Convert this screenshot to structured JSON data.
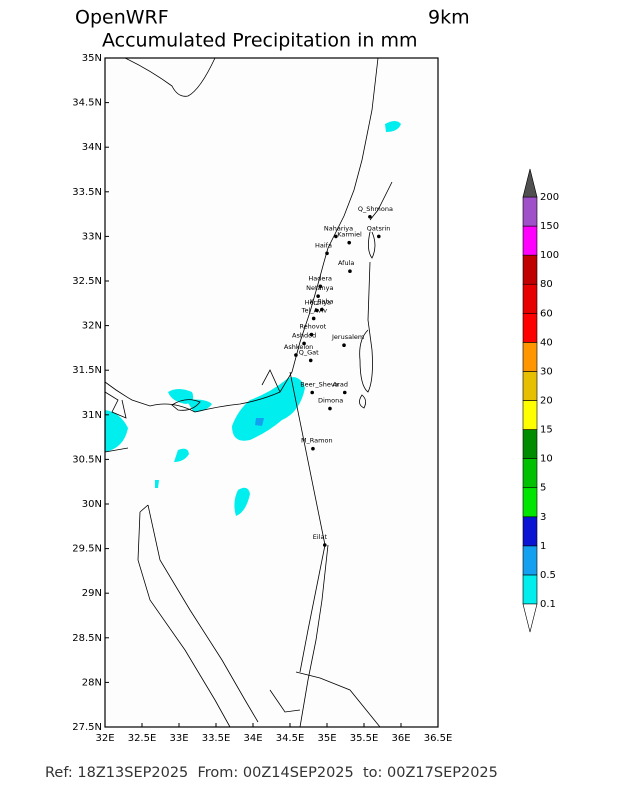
{
  "map": {
    "title": "OpenWRF",
    "resolution": "9km",
    "subtitle": "Accumulated Precipitation in mm",
    "footer": "Ref: 18Z13SEP2025  From: 00Z14SEP2025  to: 00Z17SEP2025",
    "xlim": [
      32,
      36.5
    ],
    "ylim": [
      27.5,
      35
    ],
    "xticks": [
      {
        "value": 32,
        "label": "32E"
      },
      {
        "value": 32.5,
        "label": "32.5E"
      },
      {
        "value": 33,
        "label": "33E"
      },
      {
        "value": 33.5,
        "label": "33.5E"
      },
      {
        "value": 34,
        "label": "34E"
      },
      {
        "value": 34.5,
        "label": "34.5E"
      },
      {
        "value": 35,
        "label": "35E"
      },
      {
        "value": 35.5,
        "label": "35.5E"
      },
      {
        "value": 36,
        "label": "36E"
      },
      {
        "value": 36.5,
        "label": "36.5E"
      }
    ],
    "yticks": [
      {
        "value": 27.5,
        "label": "27.5N"
      },
      {
        "value": 28,
        "label": "28N"
      },
      {
        "value": 28.5,
        "label": "28.5N"
      },
      {
        "value": 29,
        "label": "29N"
      },
      {
        "value": 29.5,
        "label": "29.5N"
      },
      {
        "value": 30,
        "label": "30N"
      },
      {
        "value": 30.5,
        "label": "30.5N"
      },
      {
        "value": 31,
        "label": "31N"
      },
      {
        "value": 31.5,
        "label": "31.5N"
      },
      {
        "value": 32,
        "label": "32N"
      },
      {
        "value": 32.5,
        "label": "32.5N"
      },
      {
        "value": 33,
        "label": "33N"
      },
      {
        "value": 33.5,
        "label": "33.5N"
      },
      {
        "value": 34,
        "label": "34N"
      },
      {
        "value": 34.5,
        "label": "34.5N"
      },
      {
        "value": 35,
        "label": "35N"
      }
    ],
    "cities": [
      {
        "name": "Q_Shmona",
        "lon": 35.58,
        "lat": 33.22
      },
      {
        "name": "Qatsrin",
        "lon": 35.7,
        "lat": 33.0
      },
      {
        "name": "Nahariya",
        "lon": 35.12,
        "lat": 33.0
      },
      {
        "name": "Karmiel",
        "lon": 35.3,
        "lat": 32.93
      },
      {
        "name": "Haifa",
        "lon": 35.0,
        "lat": 32.81
      },
      {
        "name": "Afula",
        "lon": 35.31,
        "lat": 32.61
      },
      {
        "name": "Hadera",
        "lon": 34.91,
        "lat": 32.44
      },
      {
        "name": "Netanya",
        "lon": 34.88,
        "lat": 32.33
      },
      {
        "name": "Herzliya",
        "lon": 34.86,
        "lat": 32.17
      },
      {
        "name": "K_Saba",
        "lon": 34.93,
        "lat": 32.18
      },
      {
        "name": "Tel_Aviv",
        "lon": 34.82,
        "lat": 32.08
      },
      {
        "name": "Rehovot",
        "lon": 34.79,
        "lat": 31.9
      },
      {
        "name": "Ashdod",
        "lon": 34.69,
        "lat": 31.8
      },
      {
        "name": "Ashkelon",
        "lon": 34.58,
        "lat": 31.67
      },
      {
        "name": "Q_Gat",
        "lon": 34.78,
        "lat": 31.61
      },
      {
        "name": "Jerusalem",
        "lon": 35.23,
        "lat": 31.78
      },
      {
        "name": "Beer_Sheva",
        "lon": 34.8,
        "lat": 31.25
      },
      {
        "name": "Arad",
        "lon": 35.24,
        "lat": 31.25
      },
      {
        "name": "Dimona",
        "lon": 35.04,
        "lat": 31.07
      },
      {
        "name": "M_Ramon",
        "lon": 34.81,
        "lat": 30.62
      },
      {
        "name": "Eilat",
        "lon": 34.97,
        "lat": 29.54
      }
    ],
    "colorbar": {
      "levels": [
        0.1,
        0.5,
        1,
        3,
        5,
        10,
        15,
        20,
        30,
        40,
        60,
        80,
        100,
        150,
        200
      ],
      "colors": [
        "#ffffff",
        "#00eeee",
        "#14a0f0",
        "#0a14d2",
        "#00e600",
        "#00c000",
        "#008c00",
        "#ffff00",
        "#e6c000",
        "#ff9600",
        "#ff0000",
        "#e60000",
        "#c00000",
        "#ff00ff",
        "#a050c8",
        "#505050"
      ]
    }
  }
}
